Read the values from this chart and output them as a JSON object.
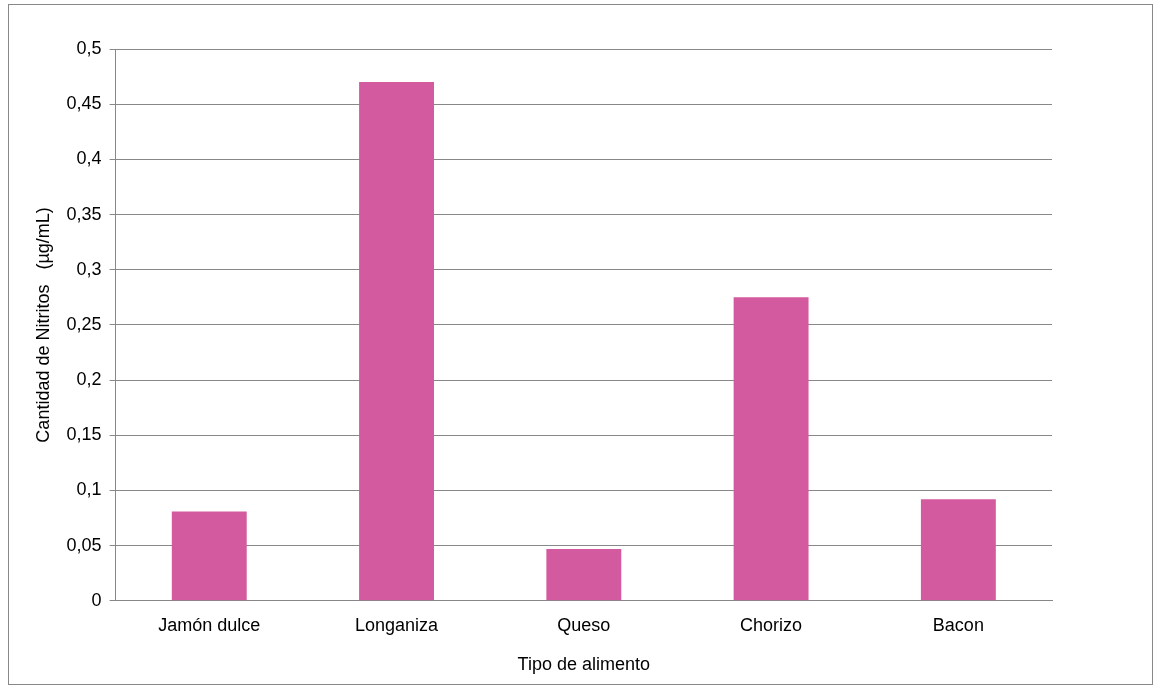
{
  "chart_data": {
    "type": "bar",
    "xlabel": "Tipo de alimento",
    "ylabel": "Cantidad de Nitritos   (µg/mL)",
    "categories": [
      "Jamón dulce",
      "Longaniza",
      "Queso",
      "Chorizo",
      "Bacon"
    ],
    "values": [
      0.081,
      0.47,
      0.047,
      0.275,
      0.092
    ],
    "color": "#d45a9f",
    "ylim": [
      0,
      0.5
    ],
    "yticks": [
      {
        "value": 0,
        "label": "0"
      },
      {
        "value": 0.05,
        "label": "0,05"
      },
      {
        "value": 0.1,
        "label": "0,1"
      },
      {
        "value": 0.15,
        "label": "0,15"
      },
      {
        "value": 0.2,
        "label": "0,2"
      },
      {
        "value": 0.25,
        "label": "0,25"
      },
      {
        "value": 0.3,
        "label": "0,3"
      },
      {
        "value": 0.35,
        "label": "0,35"
      },
      {
        "value": 0.4,
        "label": "0,4"
      },
      {
        "value": 0.45,
        "label": "0,45"
      },
      {
        "value": 0.5,
        "label": "0,5"
      }
    ],
    "grid": "y"
  }
}
